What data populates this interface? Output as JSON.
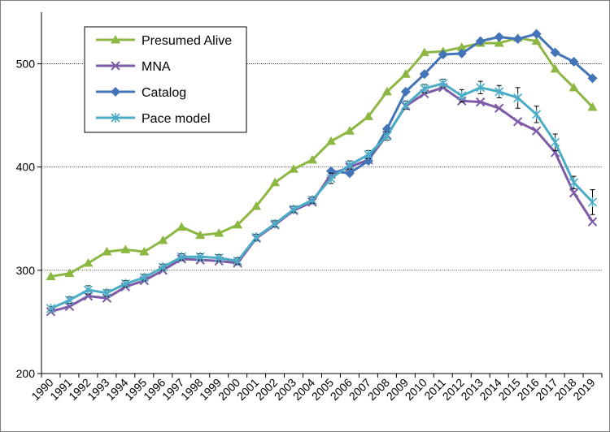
{
  "chart_data": {
    "type": "line",
    "title": "",
    "xlabel": "",
    "ylabel": "",
    "ylim": [
      200,
      550
    ],
    "yticks": [
      200,
      300,
      400,
      500
    ],
    "grid": "horizontal dotted at 300, 400, 500",
    "legend_position": "top-left",
    "categories": [
      "1990",
      "1991",
      "1992",
      "1993",
      "1994",
      "1995",
      "1996",
      "1997",
      "1998",
      "1999",
      "2000",
      "2001",
      "2002",
      "2003",
      "2004",
      "2005",
      "2006",
      "2007",
      "2008",
      "2009",
      "2010",
      "2011",
      "2012",
      "2013",
      "2014",
      "2015",
      "2016",
      "2017",
      "2018",
      "2019"
    ],
    "series": [
      {
        "name": "Presumed Alive",
        "color": "#8DB743",
        "marker": "triangle",
        "values": [
          294,
          297,
          307,
          318,
          320,
          318,
          329,
          342,
          334,
          336,
          344,
          362,
          385,
          398,
          407,
          425,
          435,
          449,
          473,
          490,
          511,
          512,
          516,
          520,
          520,
          525,
          522,
          495,
          477,
          458
        ]
      },
      {
        "name": "MNA",
        "color": "#7D5BA6",
        "marker": "x",
        "values": [
          260,
          265,
          275,
          273,
          284,
          290,
          300,
          311,
          310,
          309,
          307,
          331,
          344,
          358,
          366,
          393,
          400,
          407,
          431,
          459,
          471,
          477,
          464,
          463,
          457,
          444,
          435,
          414,
          375,
          347
        ]
      },
      {
        "name": "Catalog",
        "color": "#4474B8",
        "marker": "diamond",
        "values": [
          null,
          null,
          null,
          null,
          null,
          null,
          null,
          null,
          null,
          null,
          null,
          null,
          null,
          null,
          null,
          396,
          394,
          406,
          437,
          473,
          490,
          509,
          510,
          522,
          526,
          524,
          529,
          511,
          502,
          486
        ]
      },
      {
        "name": "Pace model",
        "color": "#4BACC6",
        "marker": "star",
        "values": [
          263,
          271,
          281,
          278,
          287,
          293,
          303,
          313,
          313,
          312,
          309,
          332,
          345,
          359,
          368,
          389,
          402,
          412,
          430,
          460,
          476,
          481,
          469,
          477,
          473,
          467,
          451,
          424,
          385,
          366
        ],
        "error": [
          2,
          3,
          4,
          3,
          3,
          3,
          3,
          3,
          3,
          3,
          3,
          3,
          3,
          3,
          3,
          5,
          4,
          4,
          4,
          4,
          4,
          4,
          6,
          6,
          6,
          10,
          8,
          8,
          6,
          12
        ]
      }
    ]
  }
}
